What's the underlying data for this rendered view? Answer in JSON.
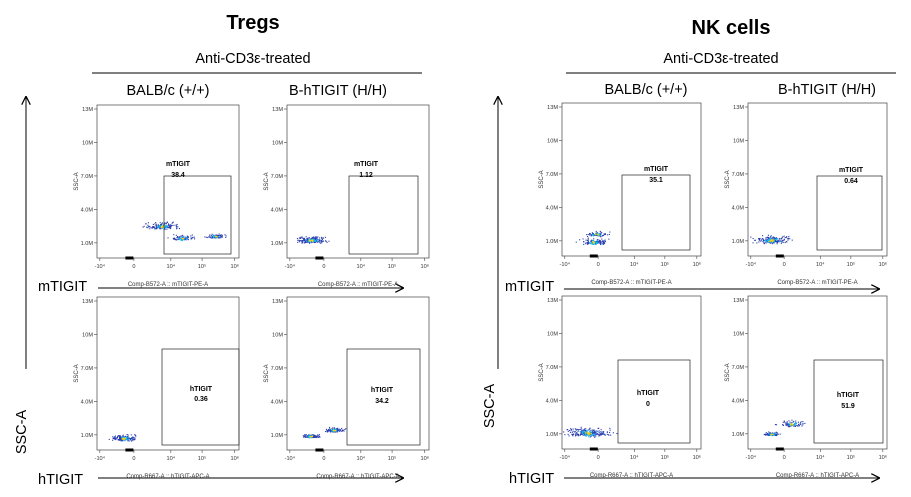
{
  "panels": [
    {
      "title": "Tregs",
      "treatment": "Anti-CD3ε-treated",
      "columns": [
        "BALB/c (+/+)",
        "B-hTIGIT (H/H)"
      ],
      "y_axis_label": "SSC-A",
      "row_labels": [
        "mTIGIT",
        "hTIGIT"
      ]
    },
    {
      "title": "NK cells",
      "treatment": "Anti-CD3ε-treated",
      "columns": [
        "BALB/c (+/+)",
        "B-hTIGIT (H/H)"
      ],
      "y_axis_label": "SSC-A",
      "row_labels": [
        "mTIGIT",
        "hTIGIT"
      ]
    }
  ],
  "axis_ticks": {
    "y": [
      "1.0M",
      "4.0M",
      "7.0M",
      "10M",
      "13M"
    ],
    "x": [
      "-10⁴",
      "0",
      "10⁴",
      "10⁵",
      "10⁶"
    ]
  },
  "subplot_y_label": "SSC-A",
  "x_param_labels": {
    "mTIGIT": "Comp-B572-A :: mTIGIT-PE-A",
    "hTIGIT": "Comp-R667-A :: hTIGIT-APC-A"
  },
  "colors": {
    "dot": "#2b3fb0",
    "core": "#00c0ff",
    "hot": "#ffd000"
  },
  "chart_data": [
    {
      "type": "scatter",
      "panel": "Tregs",
      "column": "BALB/c (+/+)",
      "marker": "mTIGIT",
      "gate_label": "mTIGIT",
      "gate_value": "38.4",
      "ylim": [
        "0",
        "13M"
      ]
    },
    {
      "type": "scatter",
      "panel": "Tregs",
      "column": "B-hTIGIT (H/H)",
      "marker": "mTIGIT",
      "gate_label": "mTIGIT",
      "gate_value": "1.12",
      "ylim": [
        "0",
        "13M"
      ]
    },
    {
      "type": "scatter",
      "panel": "Tregs",
      "column": "BALB/c (+/+)",
      "marker": "hTIGIT",
      "gate_label": "hTIGIT",
      "gate_value": "0.36",
      "ylim": [
        "0",
        "13M"
      ]
    },
    {
      "type": "scatter",
      "panel": "Tregs",
      "column": "B-hTIGIT (H/H)",
      "marker": "hTIGIT",
      "gate_label": "hTIGIT",
      "gate_value": "34.2",
      "ylim": [
        "0",
        "13M"
      ]
    },
    {
      "type": "scatter",
      "panel": "NK cells",
      "column": "BALB/c (+/+)",
      "marker": "mTIGIT",
      "gate_label": "mTIGIT",
      "gate_value": "35.1",
      "ylim": [
        "0",
        "13M"
      ]
    },
    {
      "type": "scatter",
      "panel": "NK cells",
      "column": "B-hTIGIT (H/H)",
      "marker": "mTIGIT",
      "gate_label": "mTIGIT",
      "gate_value": "0.64",
      "ylim": [
        "0",
        "13M"
      ]
    },
    {
      "type": "scatter",
      "panel": "NK cells",
      "column": "BALB/c (+/+)",
      "marker": "hTIGIT",
      "gate_label": "hTIGIT",
      "gate_value": "0",
      "ylim": [
        "0",
        "13M"
      ]
    },
    {
      "type": "scatter",
      "panel": "NK cells",
      "column": "B-hTIGIT (H/H)",
      "marker": "hTIGIT",
      "gate_label": "hTIGIT",
      "gate_value": "51.9",
      "ylim": [
        "0",
        "13M"
      ]
    }
  ]
}
